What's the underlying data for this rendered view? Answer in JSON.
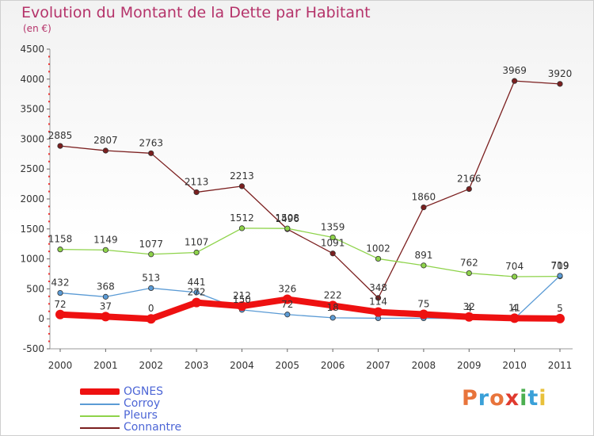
{
  "title": "Evolution du Montant de la Dette par Habitant",
  "subtitle": "(en €)",
  "logo": {
    "text": "Proxiti",
    "colors": [
      "#e8743b",
      "#3aa0d8",
      "#e8743b",
      "#e03a2f",
      "#4caf50",
      "#3aa0d8",
      "#e8c13b"
    ]
  },
  "chart_data": {
    "type": "line",
    "x": [
      "2000",
      "2001",
      "2002",
      "2003",
      "2004",
      "2005",
      "2006",
      "2007",
      "2008",
      "2009",
      "2010",
      "2011"
    ],
    "ylim": [
      -500,
      4500
    ],
    "yticks": [
      -500,
      0,
      500,
      1000,
      1500,
      2000,
      2500,
      3000,
      3500,
      4000,
      4500
    ],
    "grid": false,
    "legend_position": "bottom-left",
    "series": [
      {
        "name": "OGNES",
        "color": "#ee1111",
        "values": [
          72,
          37,
          0,
          272,
          212,
          326,
          222,
          114,
          75,
          32,
          11,
          5
        ],
        "labels": [
          "72",
          "37",
          "0",
          "272",
          "212",
          "326",
          "222",
          "114",
          "75",
          "32",
          "11",
          "5"
        ]
      },
      {
        "name": "Corroy",
        "color": "#5b9bd5",
        "values": [
          432,
          368,
          513,
          441,
          150,
          72,
          18,
          10,
          10,
          4,
          4,
          719
        ],
        "labels": [
          "432",
          "368",
          "513",
          "441",
          "150",
          "72",
          "18",
          "",
          "",
          "4",
          "4",
          "719"
        ]
      },
      {
        "name": "Pleurs",
        "color": "#8ed34a",
        "values": [
          1158,
          1149,
          1077,
          1107,
          1512,
          1508,
          1359,
          1002,
          891,
          762,
          704,
          709
        ],
        "labels": [
          "1158",
          "1149",
          "1077",
          "1107",
          "1512",
          "1508",
          "1359",
          "1002",
          "891",
          "762",
          "704",
          "709"
        ]
      },
      {
        "name": "Connantre",
        "color": "#7b1f1f",
        "values": [
          2885,
          2807,
          2763,
          2113,
          2213,
          1496,
          1091,
          348,
          1860,
          2166,
          3969,
          3920
        ],
        "labels": [
          "2885",
          "2807",
          "2763",
          "2113",
          "2213",
          "1496",
          "1091",
          "348",
          "1860",
          "2166",
          "3969",
          "3920"
        ]
      }
    ]
  }
}
